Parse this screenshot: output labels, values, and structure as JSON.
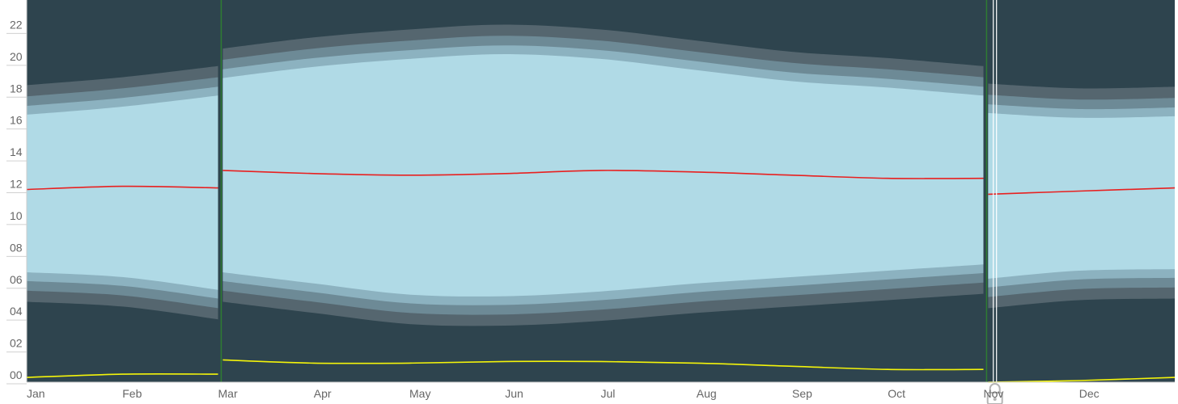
{
  "chart_data": {
    "type": "area",
    "y_ticks": [
      "00",
      "02",
      "04",
      "06",
      "08",
      "10",
      "12",
      "14",
      "16",
      "18",
      "20",
      "22"
    ],
    "ylim": [
      0,
      24
    ],
    "x_ticks": [
      "Jan",
      "Feb",
      "Mar",
      "Apr",
      "May",
      "Jun",
      "Jul",
      "Aug",
      "Sep",
      "Oct",
      "Nov",
      "Dec"
    ],
    "xlim_months": [
      0,
      12
    ],
    "day_length_bands": {
      "x_month": [
        0,
        1,
        2,
        2.05,
        3,
        4,
        5,
        6,
        7,
        8,
        9,
        10,
        10.05,
        11,
        12
      ],
      "sunrise": [
        6.9,
        6.6,
        5.8,
        6.9,
        6.2,
        5.5,
        5.4,
        5.7,
        6.2,
        6.6,
        7.0,
        7.4,
        6.5,
        7.0,
        7.1
      ],
      "sunset": [
        16.8,
        17.3,
        18.0,
        19.1,
        19.8,
        20.3,
        20.6,
        20.3,
        19.6,
        18.9,
        18.5,
        18.0,
        16.9,
        16.6,
        16.7
      ],
      "twilight_offsets_hours": [
        0.55,
        1.15,
        1.85
      ]
    },
    "solar_noon": {
      "x_month": [
        0,
        1,
        2,
        2.05,
        3,
        4,
        5,
        6,
        7,
        8,
        9,
        10,
        10.05,
        11,
        12
      ],
      "y": [
        12.1,
        12.3,
        12.2,
        13.3,
        13.1,
        13.0,
        13.1,
        13.3,
        13.2,
        13.0,
        12.8,
        12.8,
        11.8,
        12.0,
        12.2
      ]
    },
    "daylight_hours": {
      "x_month": [
        0,
        1,
        2,
        2.05,
        3,
        4,
        5,
        6,
        7,
        8,
        9,
        10,
        10.05,
        11,
        12
      ],
      "y": [
        0.3,
        0.5,
        0.5,
        1.4,
        1.2,
        1.2,
        1.3,
        1.3,
        1.2,
        1.0,
        0.8,
        0.8,
        0.0,
        0.1,
        0.3
      ]
    },
    "dst_markers_month": [
      2.05,
      10.05
    ],
    "today_marker_month": 10.12,
    "icons": [
      "lock-icon"
    ],
    "colors": {
      "night": "#2e444e",
      "astronomical_twilight": "#55666f",
      "nautical_twilight": "#6d8a96",
      "civil_twilight": "#8cb2c0",
      "daylight": "#b0dae6",
      "solar_noon_line": "#e82020",
      "daylight_hours_line": "#f4f40a",
      "dst_marker": "#2e7d32",
      "today_marker": "#ffffff",
      "axis_text": "#666666"
    }
  }
}
